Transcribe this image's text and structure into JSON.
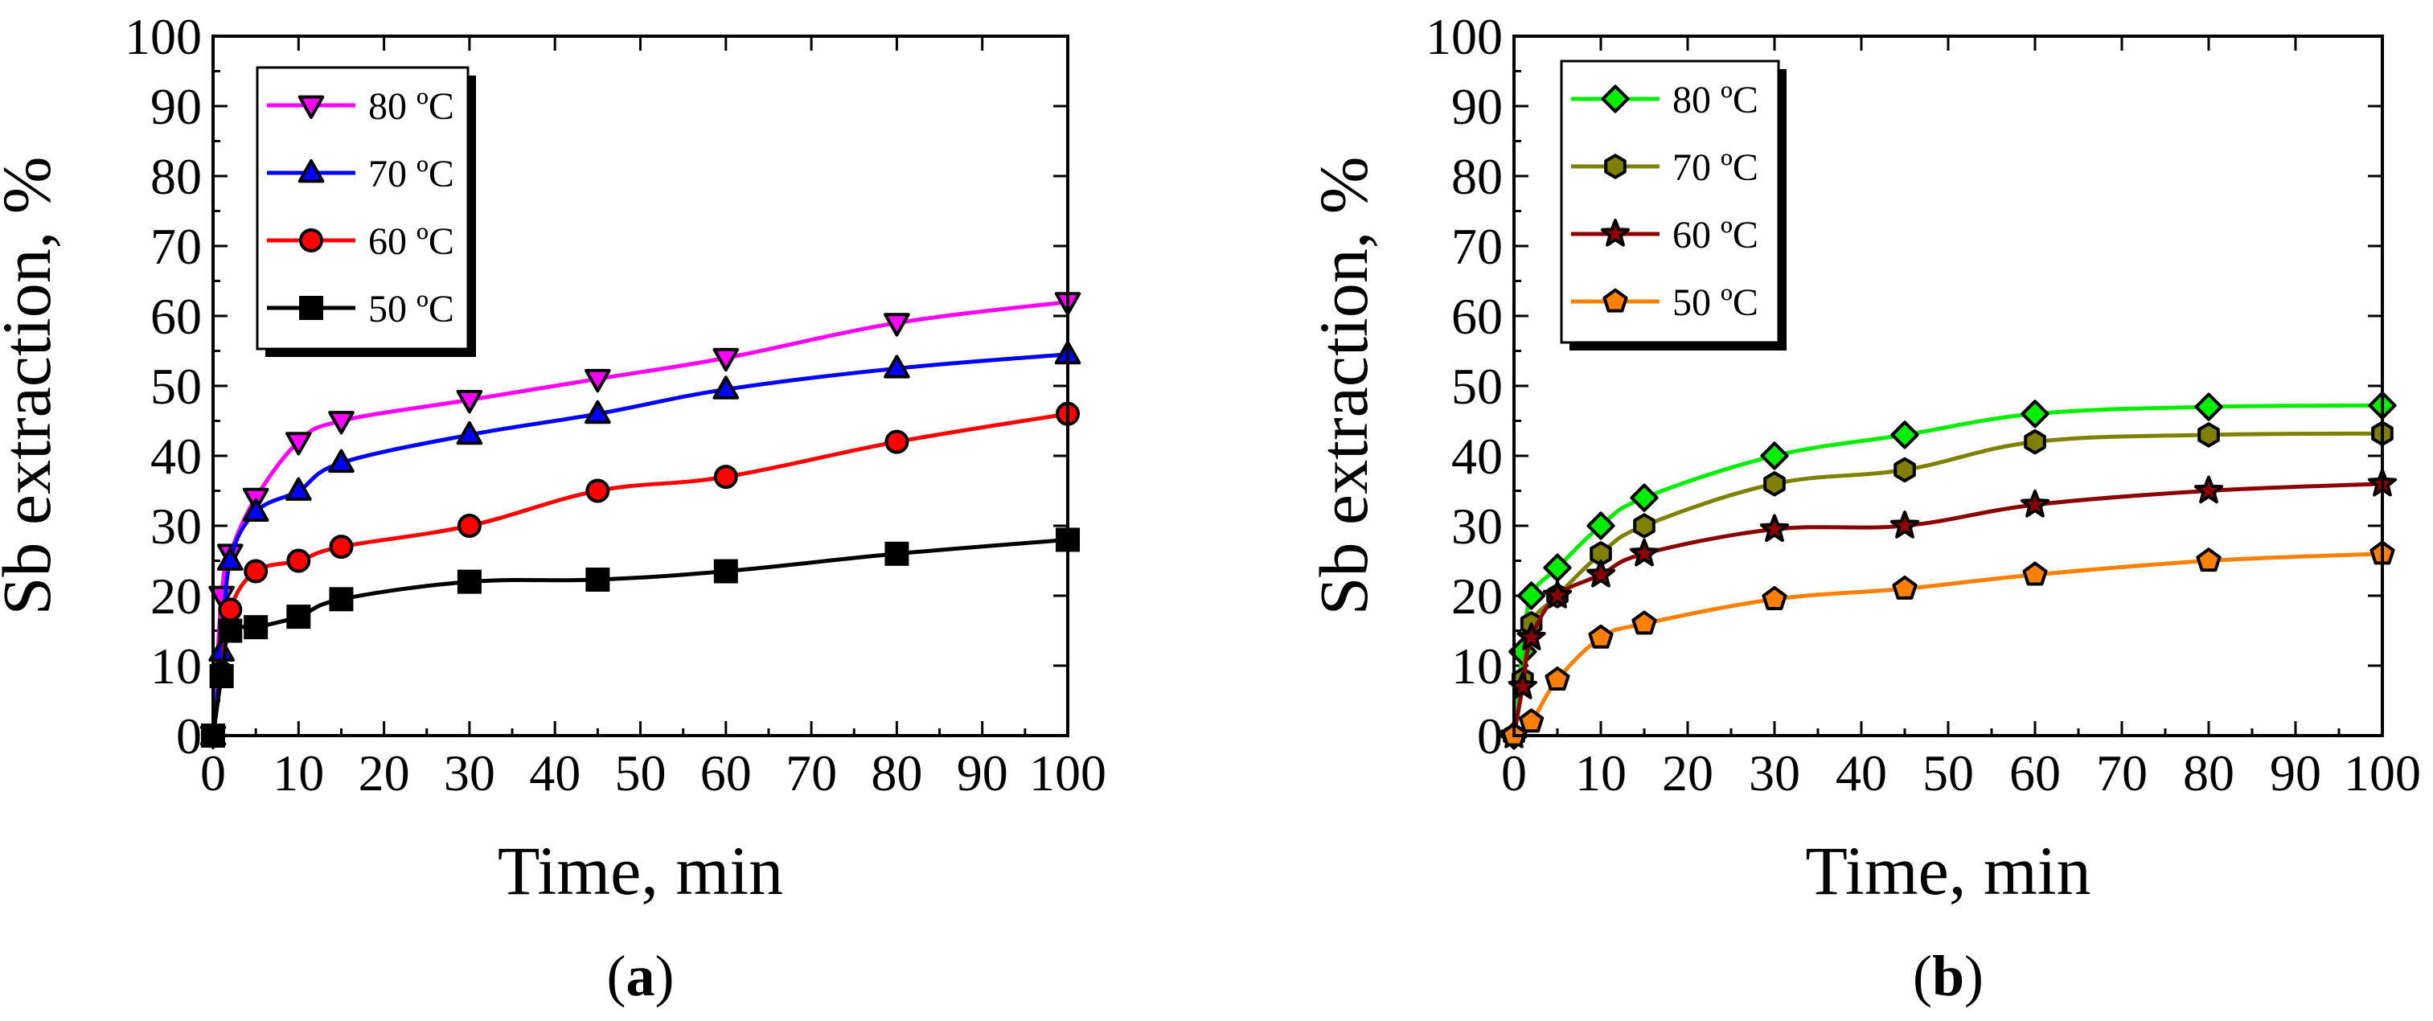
{
  "chart_data": [
    {
      "type": "line",
      "panel": "a",
      "caption": "(a)",
      "caption_letter": "a",
      "xlabel": "Time, min",
      "ylabel": "Sb extraction, %",
      "xlim": [
        0,
        100
      ],
      "ylim": [
        0,
        100
      ],
      "xticks": [
        0,
        10,
        20,
        30,
        40,
        50,
        60,
        70,
        80,
        90,
        100
      ],
      "yticks": [
        0,
        10,
        20,
        30,
        40,
        50,
        60,
        70,
        80,
        90,
        100
      ],
      "legend_position": "top-left",
      "series": [
        {
          "name": "80 ºC",
          "color": "#ff00ff",
          "marker": "triangle-down",
          "x": [
            0,
            1,
            2,
            5,
            10,
            15,
            30,
            45,
            60,
            80,
            100
          ],
          "y": [
            0,
            20,
            26,
            34,
            42,
            45,
            48,
            51,
            54,
            59,
            62
          ]
        },
        {
          "name": "70 ºC",
          "color": "#0000ff",
          "marker": "triangle-up",
          "x": [
            0,
            1,
            2,
            5,
            10,
            15,
            30,
            45,
            60,
            80,
            100
          ],
          "y": [
            0,
            12,
            25,
            32,
            35,
            39,
            43,
            46,
            49.5,
            52.5,
            54.5
          ]
        },
        {
          "name": "60 ºC",
          "color": "#ff0000",
          "marker": "circle",
          "x": [
            0,
            1,
            2,
            5,
            10,
            15,
            30,
            45,
            60,
            80,
            100
          ],
          "y": [
            0,
            9,
            18,
            23.5,
            25,
            27,
            30,
            35,
            37,
            42,
            46
          ]
        },
        {
          "name": "50 ºC",
          "color": "#000000",
          "marker": "square",
          "x": [
            0,
            1,
            2,
            5,
            10,
            15,
            30,
            45,
            60,
            80,
            100
          ],
          "y": [
            0,
            8.5,
            15,
            15.5,
            17,
            19.5,
            22,
            22.3,
            23.5,
            26,
            28
          ]
        }
      ]
    },
    {
      "type": "line",
      "panel": "b",
      "caption": "(b)",
      "caption_letter": "b",
      "xlabel": "Time, min",
      "ylabel": "Sb extraction, %",
      "xlim": [
        0,
        100
      ],
      "ylim": [
        0,
        100
      ],
      "xticks": [
        0,
        10,
        20,
        30,
        40,
        50,
        60,
        70,
        80,
        90,
        100
      ],
      "yticks": [
        0,
        10,
        20,
        30,
        40,
        50,
        60,
        70,
        80,
        90,
        100
      ],
      "legend_position": "top-left",
      "series": [
        {
          "name": "80 ºC",
          "color": "#00ee00",
          "marker": "diamond",
          "x": [
            0,
            1,
            2,
            5,
            10,
            15,
            30,
            45,
            60,
            80,
            100
          ],
          "y": [
            0,
            12,
            20,
            24,
            30,
            34,
            40,
            43,
            46,
            47,
            47.2
          ]
        },
        {
          "name": "70 ºC",
          "color": "#808000",
          "marker": "hexagon",
          "x": [
            0,
            1,
            2,
            5,
            10,
            15,
            30,
            45,
            60,
            80,
            100
          ],
          "y": [
            0,
            8,
            16,
            20,
            26,
            30,
            36,
            38,
            42,
            43,
            43.2
          ]
        },
        {
          "name": "60 ºC",
          "color": "#8b0000",
          "marker": "star",
          "x": [
            0,
            1,
            2,
            5,
            10,
            15,
            30,
            45,
            60,
            80,
            100
          ],
          "y": [
            0,
            7,
            14,
            20,
            23,
            26,
            29.5,
            30,
            33,
            35,
            36
          ]
        },
        {
          "name": "50 ºC",
          "color": "#ff8000",
          "marker": "pentagon",
          "x": [
            0,
            2,
            5,
            10,
            15,
            30,
            45,
            60,
            80,
            100
          ],
          "y": [
            0,
            2,
            8,
            14,
            16,
            19.5,
            21,
            23,
            25,
            26
          ]
        }
      ]
    }
  ]
}
